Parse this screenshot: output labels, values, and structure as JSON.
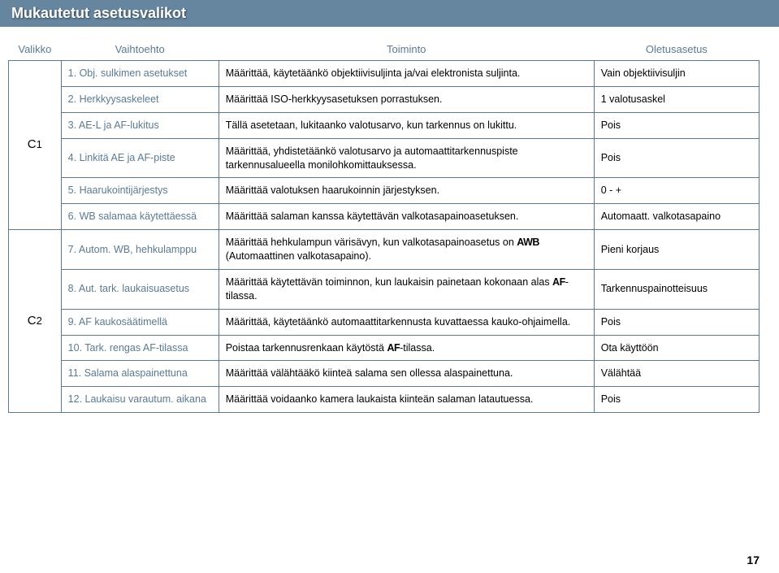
{
  "title": "Mukautetut asetusvalikot",
  "page_number": "17",
  "headers": {
    "valikko": "Valikko",
    "vaihtoehto": "Vaihtoehto",
    "toiminto": "Toiminto",
    "oletus": "Oletusasetus"
  },
  "groups": [
    {
      "menu_letter": "C",
      "menu_num": "1",
      "rows": [
        {
          "vaihtoehto": "1. Obj. sulkimen asetukset",
          "toiminto": "Määrittää, käytetäänkö objektiivisuljinta ja/vai elektronista suljinta.",
          "oletus": "Vain objektiivisuljin"
        },
        {
          "vaihtoehto": "2. Herkkyysaskeleet",
          "toiminto": "Määrittää ISO-herkkyysasetuksen porrastuksen.",
          "oletus": "1 valotusaskel"
        },
        {
          "vaihtoehto": "3. AE-L ja AF-lukitus",
          "toiminto": "Tällä asetetaan, lukitaanko valotusarvo, kun tarkennus on lukittu.",
          "oletus": "Pois"
        },
        {
          "vaihtoehto": "4. Linkitä AE ja AF-piste",
          "toiminto": "Määrittää, yhdistetäänkö valotusarvo ja automaattitarkennuspiste tarkennusalueella monilohkomittauksessa.",
          "oletus": "Pois"
        },
        {
          "vaihtoehto": "5. Haarukointijärjestys",
          "toiminto": "Määrittää valotuksen haarukoinnin järjestyksen.",
          "oletus": "0 - +"
        },
        {
          "vaihtoehto": "6. WB salamaa käytettäessä",
          "toiminto": "Määrittää salaman kanssa käytettävän valkotasapainoasetuksen.",
          "oletus": "Automaatt. valkotasapaino"
        }
      ]
    },
    {
      "menu_letter": "C",
      "menu_num": "2",
      "rows": [
        {
          "vaihtoehto": "7. Autom. WB, hehkulamppu",
          "toiminto_pre": "Määrittää hehkulampun värisävyn, kun valkotasapainoasetus on ",
          "toiminto_glyph": "AWB",
          "toiminto_post": " (Automaattinen valkotasapaino).",
          "oletus": "Pieni korjaus"
        },
        {
          "vaihtoehto": "8. Aut. tark. laukaisuasetus",
          "toiminto_pre": "Määrittää käytettävän toiminnon, kun laukaisin painetaan kokonaan alas ",
          "toiminto_glyph": "AF",
          "toiminto_post": "-tilassa.",
          "oletus": "Tarkennuspainotteisuus"
        },
        {
          "vaihtoehto": "9. AF kaukosäätimellä",
          "toiminto": "Määrittää, käytetäänkö automaattitarkennusta kuvattaessa kauko-ohjaimella.",
          "oletus": "Pois"
        },
        {
          "vaihtoehto": "10. Tark. rengas AF-tilassa",
          "toiminto_pre": "Poistaa tarkennusrenkaan käytöstä ",
          "toiminto_glyph": "AF",
          "toiminto_post": "-tilassa.",
          "oletus": "Ota käyttöön"
        },
        {
          "vaihtoehto": "11. Salama alaspainettuna",
          "toiminto": "Määrittää välähtääkö kiinteä salama sen ollessa alaspainettuna.",
          "oletus": "Välähtää"
        },
        {
          "vaihtoehto": "12. Laukaisu varautum. aikana",
          "toiminto": "Määrittää voidaanko kamera laukaista kiinteän salaman latautuessa.",
          "oletus": "Pois"
        }
      ]
    }
  ]
}
